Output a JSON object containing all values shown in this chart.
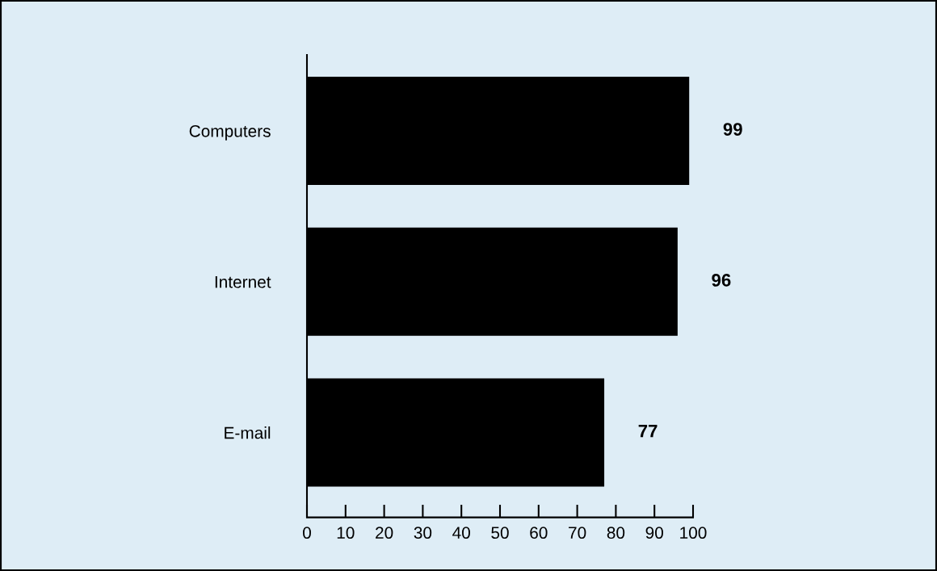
{
  "chart_data": {
    "type": "bar",
    "orientation": "horizontal",
    "categories": [
      "Computers",
      "Internet",
      "E-mail"
    ],
    "values": [
      99,
      96,
      77
    ],
    "color": "#000000",
    "xlim": [
      0,
      100
    ],
    "xticks": [
      0,
      10,
      20,
      30,
      40,
      50,
      60,
      70,
      80,
      90,
      100
    ],
    "data_labels": true,
    "grid": false,
    "legend": false
  }
}
